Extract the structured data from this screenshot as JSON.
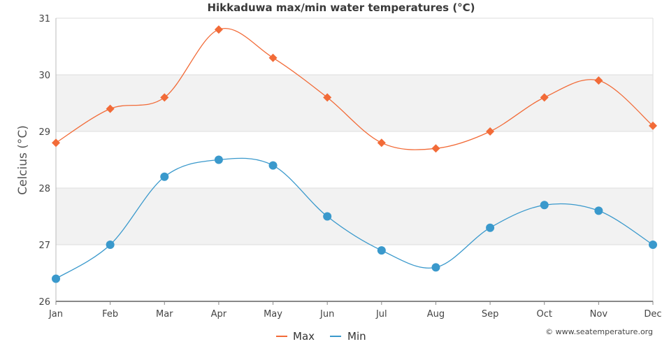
{
  "chart_data": {
    "type": "line",
    "title": "Hikkaduwa max/min water temperatures (°C)",
    "xlabel": "",
    "ylabel": "Celcius (°C)",
    "categories": [
      "Jan",
      "Feb",
      "Mar",
      "Apr",
      "May",
      "Jun",
      "Jul",
      "Aug",
      "Sep",
      "Oct",
      "Nov",
      "Dec"
    ],
    "ylim": [
      26,
      31
    ],
    "yticks": [
      26,
      27,
      28,
      29,
      30,
      31
    ],
    "grid": true,
    "legend_position": "bottom-center",
    "series": [
      {
        "name": "Max",
        "color": "#f26b38",
        "marker": "diamond",
        "values": [
          28.8,
          29.4,
          29.6,
          30.8,
          30.3,
          29.6,
          28.8,
          28.7,
          29.0,
          29.6,
          29.9,
          29.1
        ]
      },
      {
        "name": "Min",
        "color": "#3a99cc",
        "marker": "circle",
        "values": [
          26.4,
          27.0,
          28.2,
          28.5,
          28.4,
          27.5,
          26.9,
          26.6,
          27.3,
          27.7,
          27.6,
          27.0
        ]
      }
    ],
    "credit": "© www.seatemperature.org"
  }
}
